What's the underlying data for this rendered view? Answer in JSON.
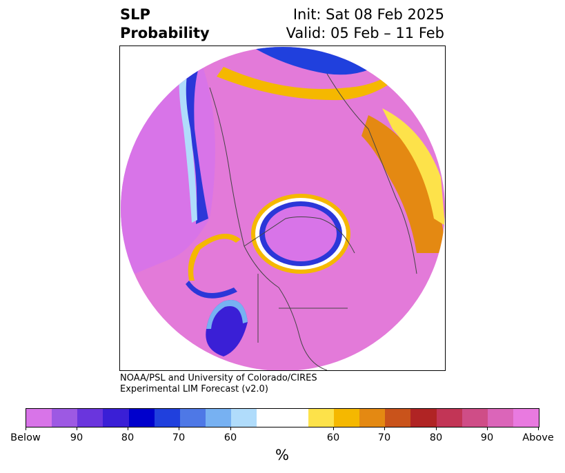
{
  "title": {
    "left_line1": "SLP",
    "left_line2": "Probability",
    "right_line1": "Init: Sat 08 Feb 2025",
    "right_line2": "Valid: 05 Feb – 11 Feb"
  },
  "credit": {
    "line1": "NOAA/PSL and University of Colorado/CIRES",
    "line2": "Experimental LIM Forecast (v2.0)"
  },
  "colorbar": {
    "colors": [
      "#d874e8",
      "#9d59e3",
      "#6a35dd",
      "#3a1fd6",
      "#0000cc",
      "#2040dd",
      "#4e78e6",
      "#77b1f2",
      "#b0dcfb",
      "#ffffff",
      "#ffffff",
      "#fde24a",
      "#f5b800",
      "#e48912",
      "#c9531b",
      "#b02424",
      "#c23556",
      "#cf4d87",
      "#db65b9",
      "#e97ae0"
    ],
    "labels": [
      "Below",
      "90",
      "80",
      "70",
      "60",
      "60",
      "70",
      "80",
      "90",
      "Above"
    ],
    "unit": "%"
  }
}
